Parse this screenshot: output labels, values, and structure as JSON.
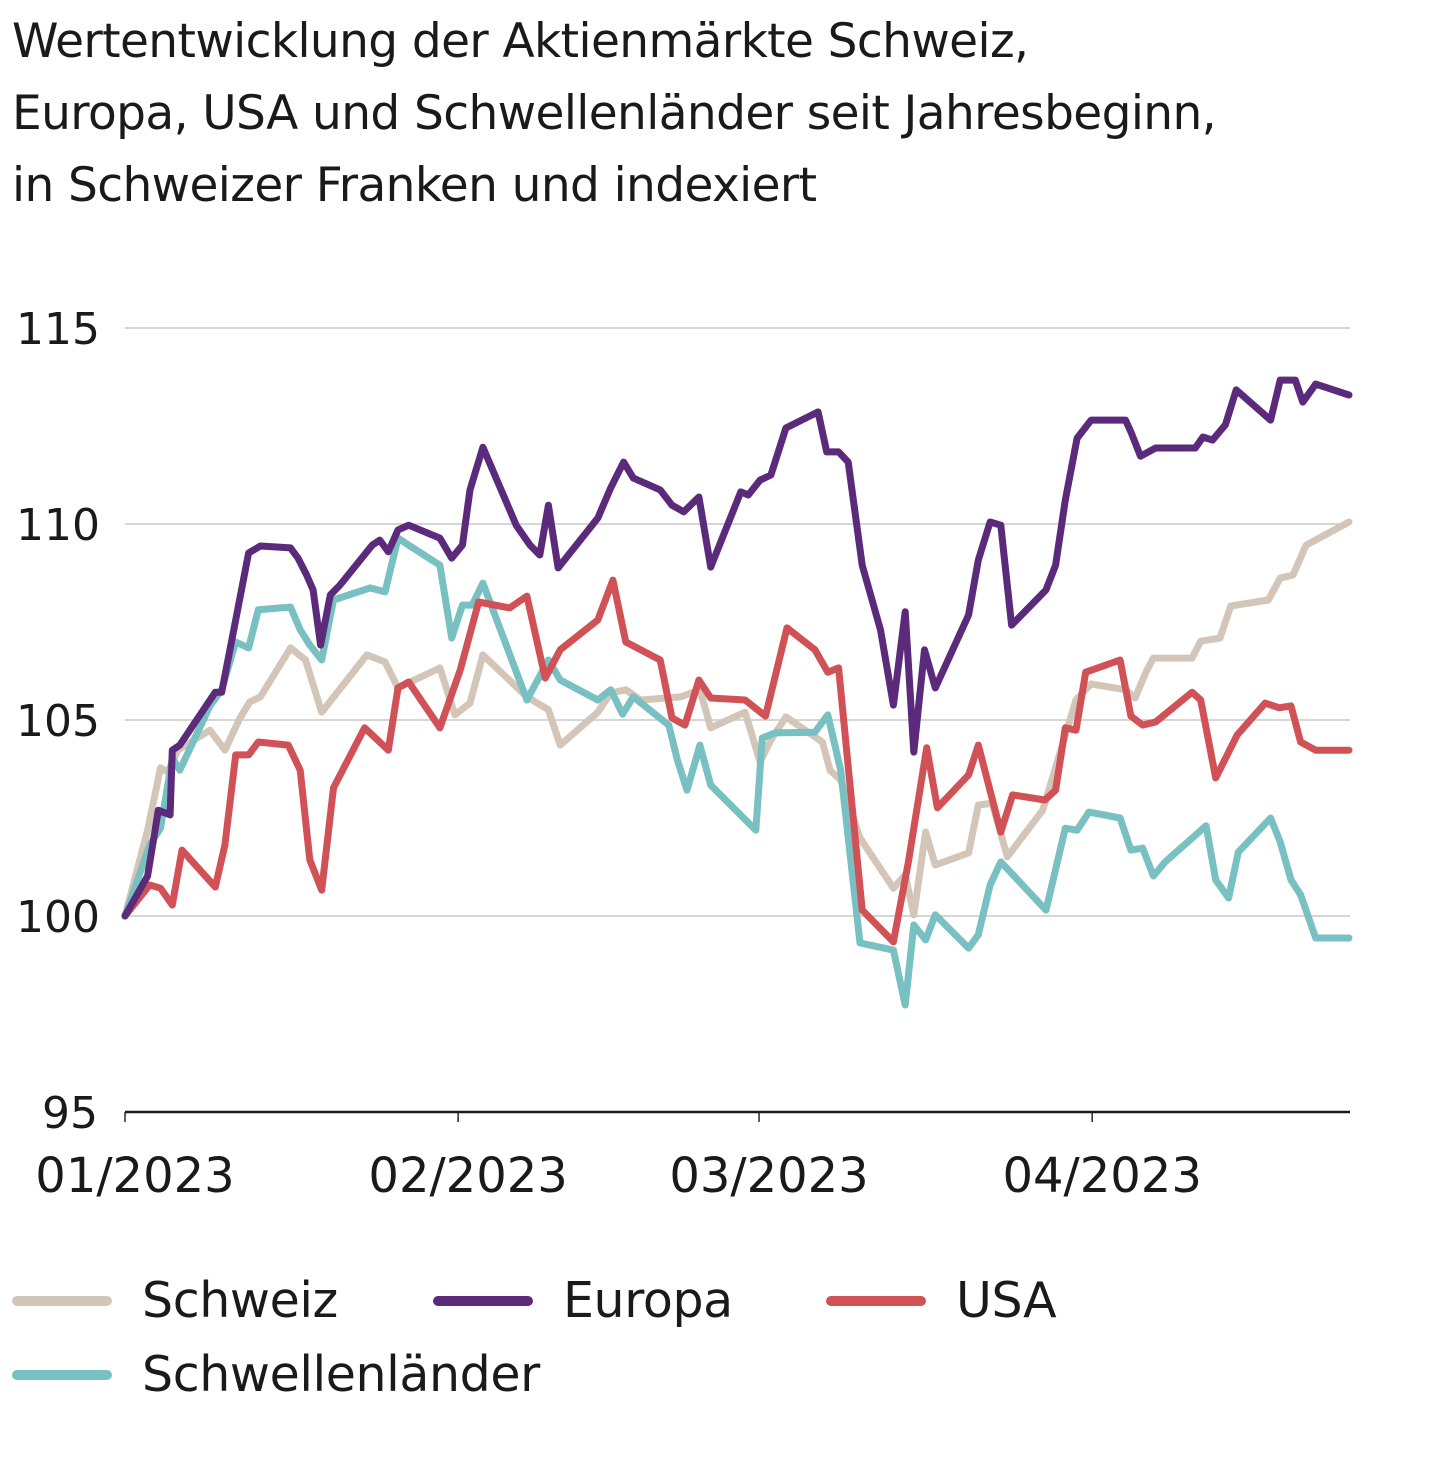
{
  "title_lines": [
    "Wertentwicklung der Aktienmärkte Schweiz,",
    "Europa, USA und Schwellenländer seit Jahresbeginn,",
    "in Schweizer Franken und indexiert"
  ],
  "colors": {
    "Schweiz": "#d3c6b8",
    "Europa": "#5c2a7a",
    "USA": "#d05256",
    "Schwellenländer": "#78c0c1",
    "gridline": "#c8c8c8",
    "axis": "#1a1a1a"
  },
  "chart_data": {
    "type": "line",
    "title": "Wertentwicklung der Aktienmärkte Schweiz, Europa, USA und Schwellenländer seit Jahresbeginn, in Schweizer Franken und indexiert",
    "xlabel": "",
    "ylabel": "",
    "x_unit": "days since 01/01/2023",
    "xlim": [
      0,
      114
    ],
    "ylim": [
      95,
      115
    ],
    "yticks": [
      95,
      100,
      105,
      110,
      115
    ],
    "ytick_labels": [
      "95",
      "100",
      "105",
      "110",
      "115"
    ],
    "xticks": [
      0,
      31,
      59,
      90
    ],
    "xtick_labels": [
      "01/2023",
      "02/2023",
      "03/2023",
      "04/2023"
    ],
    "grid": "horizontal",
    "legend_position": "bottom",
    "series": [
      {
        "name": "Schweiz",
        "x": [
          0,
          2.1,
          3.3,
          4.0,
          4.9,
          7.9,
          9.3,
          10.7,
          11.6,
          12.6,
          15.4,
          16.8,
          18.3,
          22.5,
          24.2,
          25.4,
          29.3,
          30.7,
          32.1,
          33.3,
          37.2,
          38.2,
          39.4,
          40.5,
          44.0,
          45.2,
          46.6,
          48.0,
          51.7,
          53.5,
          54.5,
          57.7,
          59.1,
          60.1,
          61.5,
          64.9,
          65.6,
          66.6,
          68.4,
          71.5,
          72.6,
          73.4,
          74.5,
          75.4,
          78.5,
          79.4,
          80.7,
          82.1,
          85.4,
          88.5,
          89.9,
          93.1,
          94.0,
          95.0,
          95.7,
          99.3,
          100.1,
          101.9,
          102.9,
          106.4,
          107.5,
          108.7,
          109.9,
          113.9
        ],
        "values": [
          100.0,
          102.19,
          103.78,
          103.67,
          104.23,
          104.74,
          104.23,
          105.05,
          105.46,
          105.59,
          106.84,
          106.53,
          105.2,
          106.66,
          106.48,
          105.82,
          106.33,
          105.13,
          105.43,
          106.66,
          105.64,
          105.46,
          105.26,
          104.36,
          105.2,
          105.69,
          105.77,
          105.51,
          105.59,
          105.77,
          104.8,
          105.2,
          103.93,
          104.49,
          105.08,
          104.44,
          103.72,
          103.47,
          101.99,
          100.71,
          101.05,
          100.03,
          102.14,
          101.3,
          101.61,
          102.83,
          102.88,
          101.51,
          102.7,
          105.51,
          105.92,
          105.77,
          105.56,
          106.22,
          106.58,
          106.58,
          107.01,
          107.09,
          107.91,
          108.06,
          108.62,
          108.7,
          109.46,
          110.05
        ]
      },
      {
        "name": "Europa",
        "x": [
          0,
          2.1,
          3.1,
          4.2,
          4.4,
          5.1,
          8.4,
          9.0,
          10.3,
          11.5,
          12.6,
          15.4,
          16.1,
          16.9,
          17.5,
          18.2,
          19.1,
          20.0,
          23.0,
          23.7,
          24.5,
          25.4,
          26.4,
          29.3,
          30.4,
          31.4,
          32.1,
          33.3,
          36.4,
          37.7,
          38.6,
          39.4,
          40.3,
          44.0,
          45.2,
          46.4,
          47.3,
          49.8,
          50.9,
          52.0,
          53.4,
          54.5,
          57.3,
          58.0,
          59.1,
          60.1,
          61.5,
          64.5,
          65.3,
          66.4,
          67.3,
          68.6,
          70.3,
          71.5,
          72.6,
          73.4,
          74.4,
          75.4,
          78.5,
          79.4,
          80.5,
          81.5,
          82.5,
          85.7,
          86.6,
          87.5,
          88.6,
          89.9,
          93.1,
          93.6,
          94.5,
          95.9,
          99.6,
          100.3,
          101.2,
          102.4,
          103.4,
          106.6,
          107.5,
          108.9,
          109.6,
          110.8,
          113.9
        ],
        "values": [
          100.0,
          101.02,
          102.7,
          102.58,
          104.23,
          104.36,
          105.71,
          105.71,
          107.55,
          109.26,
          109.44,
          109.39,
          109.13,
          108.7,
          108.32,
          106.91,
          108.19,
          108.44,
          109.46,
          109.59,
          109.29,
          109.85,
          109.97,
          109.64,
          109.13,
          109.46,
          110.87,
          111.96,
          109.97,
          109.46,
          109.21,
          110.48,
          108.88,
          110.15,
          110.92,
          111.58,
          111.17,
          110.87,
          110.48,
          110.31,
          110.69,
          108.9,
          110.82,
          110.74,
          111.12,
          111.25,
          112.45,
          112.86,
          111.84,
          111.84,
          111.58,
          108.95,
          107.3,
          105.38,
          107.76,
          104.18,
          106.79,
          105.82,
          107.68,
          109.08,
          110.05,
          109.97,
          107.42,
          108.32,
          108.95,
          110.61,
          112.19,
          112.65,
          112.65,
          112.35,
          111.73,
          111.94,
          111.94,
          112.22,
          112.14,
          112.53,
          113.42,
          112.65,
          113.67,
          113.67,
          113.11,
          113.57,
          113.29
        ]
      },
      {
        "name": "USA",
        "x": [
          0,
          2.3,
          3.3,
          4.4,
          5.3,
          8.4,
          9.3,
          10.3,
          11.5,
          12.4,
          15.2,
          16.3,
          17.2,
          18.3,
          19.4,
          22.3,
          24.5,
          25.4,
          26.4,
          29.3,
          31.2,
          32.9,
          35.8,
          37.4,
          39.1,
          40.5,
          44.0,
          45.4,
          46.6,
          49.8,
          50.9,
          52.1,
          53.4,
          54.5,
          57.7,
          59.6,
          61.6,
          64.2,
          65.4,
          66.4,
          68.6,
          71.5,
          72.9,
          74.6,
          75.6,
          78.5,
          79.4,
          81.5,
          82.6,
          85.6,
          86.6,
          87.5,
          88.5,
          89.4,
          92.6,
          93.6,
          94.7,
          95.9,
          99.3,
          100.1,
          101.5,
          103.5,
          106.1,
          107.4,
          108.5,
          109.4,
          110.8,
          113.9
        ],
        "values": [
          100.0,
          100.79,
          100.71,
          100.28,
          101.68,
          100.74,
          101.81,
          104.11,
          104.11,
          104.44,
          104.36,
          103.72,
          101.43,
          100.66,
          103.27,
          104.8,
          104.23,
          105.82,
          105.97,
          104.8,
          106.28,
          108.01,
          107.86,
          108.16,
          106.07,
          106.79,
          107.55,
          108.57,
          106.99,
          106.53,
          105.05,
          104.87,
          106.02,
          105.56,
          105.51,
          105.1,
          107.35,
          106.79,
          106.22,
          106.33,
          100.15,
          99.34,
          101.38,
          104.29,
          102.76,
          103.6,
          104.36,
          102.14,
          103.09,
          102.96,
          103.21,
          104.8,
          104.74,
          106.22,
          106.53,
          105.1,
          104.87,
          104.95,
          105.71,
          105.51,
          103.52,
          104.62,
          105.43,
          105.31,
          105.36,
          104.44,
          104.23,
          104.23
        ]
      },
      {
        "name": "Schwellenländer",
        "x": [
          0,
          2.3,
          3.3,
          4.4,
          5.1,
          7.9,
          9.0,
          10.3,
          11.5,
          12.4,
          15.4,
          16.3,
          17.2,
          18.3,
          19.4,
          22.8,
          24.2,
          25.4,
          26.4,
          29.3,
          30.4,
          31.4,
          32.3,
          33.3,
          37.4,
          39.4,
          40.5,
          44.0,
          45.2,
          46.3,
          47.3,
          50.6,
          51.4,
          52.3,
          53.5,
          54.5,
          58.7,
          59.3,
          60.5,
          64.2,
          65.4,
          66.6,
          68.4,
          71.5,
          72.6,
          73.4,
          74.5,
          75.4,
          78.5,
          79.4,
          80.5,
          81.5,
          85.7,
          87.5,
          88.6,
          89.7,
          92.6,
          93.6,
          94.7,
          95.7,
          96.8,
          100.6,
          101.5,
          102.7,
          103.6,
          106.6,
          107.5,
          108.5,
          109.4,
          110.8,
          113.9
        ],
        "values": [
          100.0,
          101.81,
          102.24,
          104.03,
          103.72,
          105.36,
          105.77,
          106.99,
          106.84,
          107.81,
          107.88,
          107.3,
          106.91,
          106.53,
          108.06,
          108.37,
          108.27,
          109.64,
          109.46,
          108.95,
          107.09,
          107.93,
          107.93,
          108.49,
          105.51,
          106.53,
          106.02,
          105.51,
          105.77,
          105.15,
          105.59,
          104.87,
          103.98,
          103.21,
          104.36,
          103.34,
          102.19,
          104.54,
          104.67,
          104.69,
          105.13,
          103.72,
          99.31,
          99.13,
          97.73,
          99.77,
          99.39,
          100.03,
          99.18,
          99.52,
          100.79,
          101.38,
          100.15,
          102.24,
          102.19,
          102.65,
          102.5,
          101.68,
          101.73,
          101.02,
          101.38,
          102.3,
          100.92,
          100.46,
          101.63,
          102.5,
          101.89,
          100.92,
          100.54,
          99.44,
          99.44
        ]
      }
    ]
  },
  "legend": {
    "items": [
      {
        "label": "Schweiz"
      },
      {
        "label": "Europa"
      },
      {
        "label": "USA"
      },
      {
        "label": "Schwellenländer"
      }
    ]
  }
}
